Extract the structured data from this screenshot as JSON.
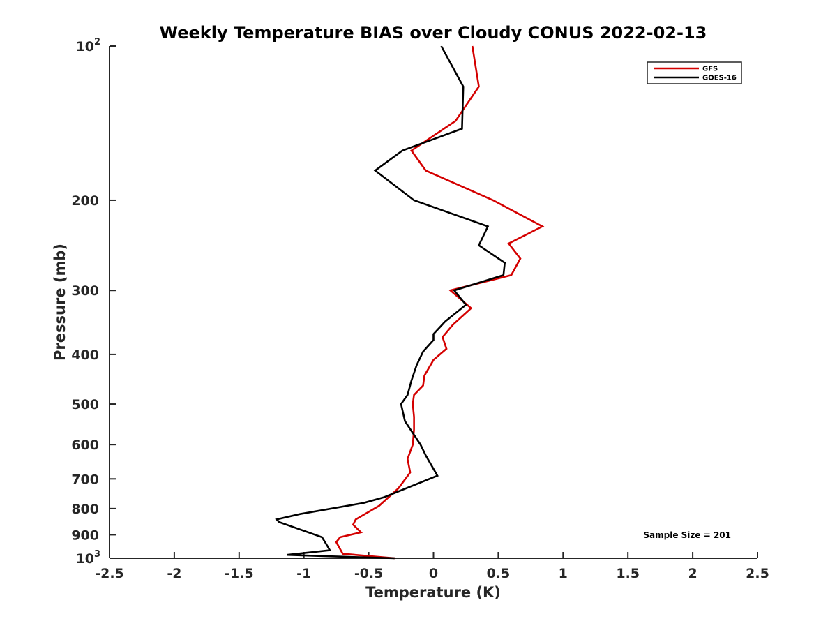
{
  "chart_data": {
    "type": "line",
    "title": "Weekly Temperature BIAS over Cloudy CONUS 2022-02-13",
    "xlabel": "Temperature (K)",
    "ylabel": "Pressure (mb)",
    "xlim": [
      -2.5,
      2.5
    ],
    "ylim": [
      100,
      1000
    ],
    "y_scale": "log",
    "y_reversed": true,
    "grid": false,
    "legend_position": "top-right",
    "x_ticks": [
      -2.5,
      -2,
      -1.5,
      -1,
      -0.5,
      0,
      0.5,
      1,
      1.5,
      2,
      2.5
    ],
    "x_tick_labels": [
      "-2.5",
      "-2",
      "-1.5",
      "-1",
      "-0.5",
      "0",
      "0.5",
      "1",
      "1.5",
      "2",
      "2.5"
    ],
    "y_ticks": [
      {
        "value": 100,
        "base": "10",
        "exp": "2"
      },
      {
        "value": 200,
        "label": "200"
      },
      {
        "value": 300,
        "label": "300"
      },
      {
        "value": 400,
        "label": "400"
      },
      {
        "value": 500,
        "label": "500"
      },
      {
        "value": 600,
        "label": "600"
      },
      {
        "value": 700,
        "label": "700"
      },
      {
        "value": 800,
        "label": "800"
      },
      {
        "value": 900,
        "label": "900"
      },
      {
        "value": 1000,
        "base": "10",
        "exp": "3"
      }
    ],
    "series": [
      {
        "name": "GFS",
        "color": "#d40000",
        "points": [
          {
            "x": 0.3,
            "y": 100
          },
          {
            "x": 0.35,
            "y": 120
          },
          {
            "x": 0.17,
            "y": 140
          },
          {
            "x": -0.17,
            "y": 160
          },
          {
            "x": -0.06,
            "y": 175
          },
          {
            "x": 0.46,
            "y": 200
          },
          {
            "x": 0.84,
            "y": 225
          },
          {
            "x": 0.58,
            "y": 243
          },
          {
            "x": 0.67,
            "y": 260
          },
          {
            "x": 0.6,
            "y": 280
          },
          {
            "x": 0.13,
            "y": 300
          },
          {
            "x": 0.29,
            "y": 325
          },
          {
            "x": 0.15,
            "y": 350
          },
          {
            "x": 0.07,
            "y": 370
          },
          {
            "x": 0.1,
            "y": 390
          },
          {
            "x": -0.0,
            "y": 410
          },
          {
            "x": -0.07,
            "y": 440
          },
          {
            "x": -0.08,
            "y": 460
          },
          {
            "x": -0.15,
            "y": 480
          },
          {
            "x": -0.16,
            "y": 500
          },
          {
            "x": -0.15,
            "y": 530
          },
          {
            "x": -0.15,
            "y": 560
          },
          {
            "x": -0.16,
            "y": 600
          },
          {
            "x": -0.2,
            "y": 640
          },
          {
            "x": -0.18,
            "y": 680
          },
          {
            "x": -0.27,
            "y": 730
          },
          {
            "x": -0.42,
            "y": 790
          },
          {
            "x": -0.6,
            "y": 840
          },
          {
            "x": -0.62,
            "y": 860
          },
          {
            "x": -0.56,
            "y": 890
          },
          {
            "x": -0.72,
            "y": 910
          },
          {
            "x": -0.75,
            "y": 930
          },
          {
            "x": -0.7,
            "y": 980
          },
          {
            "x": -0.3,
            "y": 1000
          }
        ]
      },
      {
        "name": "GOES-16",
        "color": "#000000",
        "points": [
          {
            "x": 0.06,
            "y": 100
          },
          {
            "x": 0.23,
            "y": 120
          },
          {
            "x": 0.22,
            "y": 145
          },
          {
            "x": -0.24,
            "y": 160
          },
          {
            "x": -0.45,
            "y": 175
          },
          {
            "x": -0.15,
            "y": 200
          },
          {
            "x": 0.42,
            "y": 225
          },
          {
            "x": 0.35,
            "y": 245
          },
          {
            "x": 0.55,
            "y": 265
          },
          {
            "x": 0.54,
            "y": 280
          },
          {
            "x": 0.16,
            "y": 300
          },
          {
            "x": 0.25,
            "y": 320
          },
          {
            "x": 0.09,
            "y": 345
          },
          {
            "x": -0.0,
            "y": 365
          },
          {
            "x": -0.0,
            "y": 375
          },
          {
            "x": -0.08,
            "y": 395
          },
          {
            "x": -0.13,
            "y": 420
          },
          {
            "x": -0.17,
            "y": 450
          },
          {
            "x": -0.2,
            "y": 480
          },
          {
            "x": -0.25,
            "y": 500
          },
          {
            "x": -0.22,
            "y": 540
          },
          {
            "x": -0.1,
            "y": 600
          },
          {
            "x": -0.06,
            "y": 630
          },
          {
            "x": 0.03,
            "y": 690
          },
          {
            "x": -0.38,
            "y": 760
          },
          {
            "x": -0.54,
            "y": 780
          },
          {
            "x": -1.03,
            "y": 820
          },
          {
            "x": -1.21,
            "y": 840
          },
          {
            "x": -1.19,
            "y": 850
          },
          {
            "x": -0.86,
            "y": 910
          },
          {
            "x": -0.82,
            "y": 945
          },
          {
            "x": -0.8,
            "y": 965
          },
          {
            "x": -1.13,
            "y": 985
          },
          {
            "x": -0.87,
            "y": 990
          },
          {
            "x": -0.3,
            "y": 1000
          }
        ]
      }
    ],
    "annotation": "Sample Size = 201"
  }
}
